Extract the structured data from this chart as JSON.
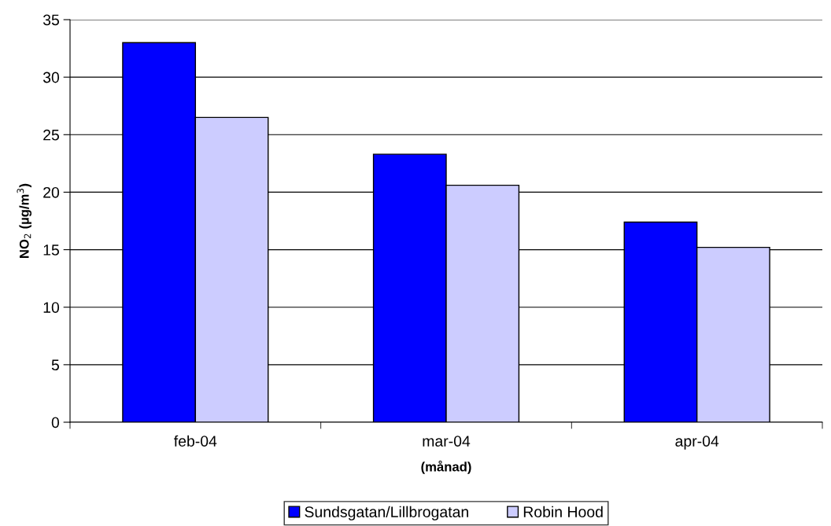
{
  "chart_data": {
    "type": "bar",
    "xlabel": "(månad)",
    "ylabel": "NO$_{2}$ (µg/m$^{3}$)",
    "categories": [
      "feb-04",
      "mar-04",
      "apr-04"
    ],
    "series": [
      {
        "name": "Sundsgatan/Lillbrogatan",
        "color": "#0000ff",
        "values": [
          33.0,
          23.3,
          17.4
        ]
      },
      {
        "name": "Robin Hood",
        "color": "#ccccff",
        "values": [
          26.5,
          20.6,
          15.2
        ]
      }
    ],
    "ylim": [
      0,
      35
    ],
    "yticks": [
      0,
      5,
      10,
      15,
      20,
      25,
      30,
      35
    ],
    "grid": "y",
    "legend": "bottom"
  }
}
